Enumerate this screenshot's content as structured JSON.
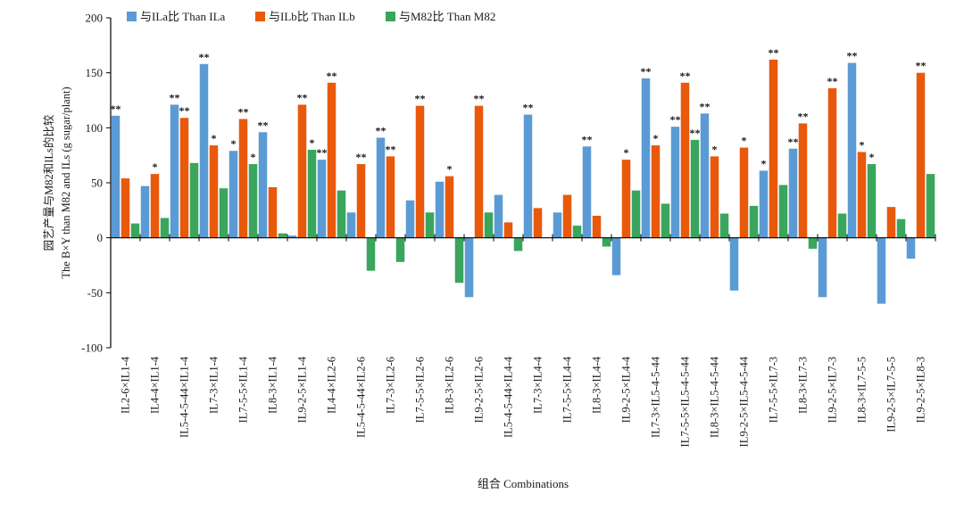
{
  "chart_data": {
    "type": "bar",
    "title": "",
    "xlabel": "组合 Combinations",
    "ylabel_cn": "园艺产量与M82和ILs的比较",
    "ylabel_en": "The B×Y than M82 and ILs (g sugar/plant)",
    "ylim": [
      -100,
      200
    ],
    "yticks": [
      -100,
      -50,
      0,
      50,
      100,
      150,
      200
    ],
    "ytick_labels": [
      "-100",
      "-50",
      "0",
      "50",
      "100",
      "150",
      "200"
    ],
    "legend_position": "top-left",
    "categories": [
      "IL2-6×IL1-4",
      "IL4-4×IL1-4",
      "IL5-4-5-44×IL1-4",
      "IL7-3×IL1-4",
      "IL7-5-5×IL1-4",
      "IL8-3×IL1-4",
      "IL9-2-5×IL1-4",
      "IL4-4×IL2-6",
      "IL5-4-5-44×IL2-6",
      "IL7-3×IL2-6",
      "IL7-5-5×IL2-6",
      "IL8-3×IL2-6",
      "IL9-2-5×IL2-6",
      "IL5-4-5-44×IL4-4",
      "IL7-3×IL4-4",
      "IL7-5-5×IL4-4",
      "IL8-3×IL4-4",
      "IL9-2-5×IL4-4",
      "IL7-3×IL5-4-5-44",
      "IL7-5-5×IL5-4-5-44",
      "IL8-3×IL5-4-5-44",
      "IL9-2-5×IL5-4-5-44",
      "IL7-5-5×IL7-3",
      "IL8-3×IL7-3",
      "IL9-2-5×IL7-3",
      "IL8-3×IL7-5-5",
      "IL9-2-5×IL7-5-5",
      "IL9-2-5×IL8-3"
    ],
    "series": [
      {
        "name": "与ILa比 Than ILa",
        "color": "#5b9bd5",
        "values": [
          111,
          47,
          121,
          158,
          79,
          96,
          2,
          71,
          23,
          91,
          34,
          51,
          -54,
          39,
          112,
          23,
          83,
          -34,
          145,
          101,
          113,
          -48,
          61,
          81,
          -54,
          159,
          -60,
          -19
        ],
        "sig": [
          "**",
          "",
          "**",
          "**",
          "*",
          "**",
          "",
          "**",
          "",
          "**",
          "",
          "",
          "",
          "",
          "**",
          "",
          "**",
          "",
          "**",
          "**",
          "**",
          "",
          "*",
          "**",
          "",
          "**",
          "",
          ""
        ]
      },
      {
        "name": "与ILb比 Than ILb",
        "color": "#e8590c",
        "values": [
          54,
          58,
          109,
          84,
          108,
          46,
          121,
          141,
          67,
          74,
          120,
          56,
          120,
          14,
          27,
          39,
          20,
          71,
          84,
          141,
          74,
          82,
          162,
          104,
          136,
          78,
          28,
          150
        ],
        "sig": [
          "",
          "*",
          "**",
          "*",
          "**",
          "",
          "**",
          "**",
          "**",
          "**",
          "**",
          "*",
          "**",
          "",
          "",
          "",
          "",
          "*",
          "*",
          "**",
          "*",
          "*",
          "**",
          "**",
          "**",
          "*",
          "",
          "**"
        ]
      },
      {
        "name": "与M82比 Than M82",
        "color": "#3aa55d",
        "values": [
          13,
          18,
          68,
          45,
          67,
          4,
          80,
          43,
          -30,
          -22,
          23,
          -41,
          23,
          -12,
          0,
          11,
          -8,
          43,
          31,
          89,
          22,
          29,
          48,
          -10,
          22,
          67,
          17,
          58
        ],
        "sig": [
          "",
          "",
          "",
          "",
          "*",
          "",
          "*",
          "",
          "",
          "",
          "",
          "",
          "",
          "",
          "",
          "",
          "",
          "",
          "",
          "**",
          "",
          "",
          "",
          "",
          "",
          "*",
          "",
          ""
        ]
      }
    ]
  }
}
